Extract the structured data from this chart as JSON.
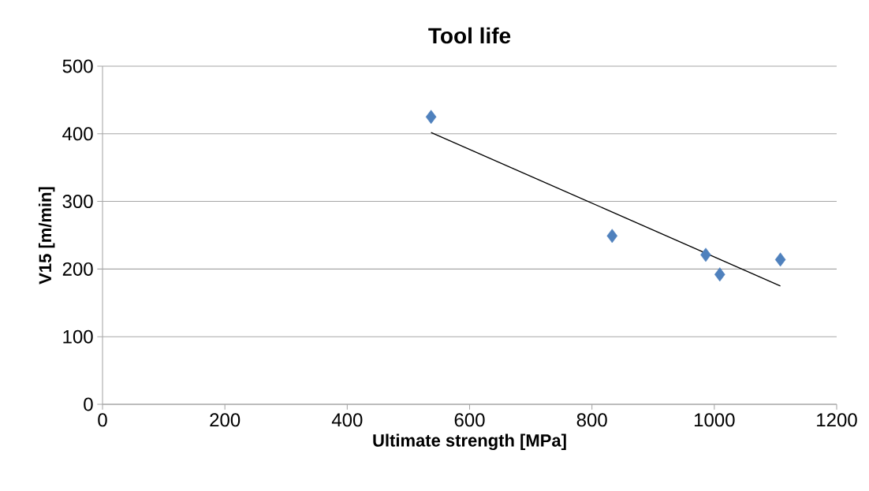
{
  "chart_data": {
    "type": "scatter",
    "title": "Tool life",
    "xlabel": "Ultimate strength [MPa]",
    "ylabel": "V15 [m/min]",
    "xlim": [
      0,
      1200
    ],
    "ylim": [
      0,
      500
    ],
    "xticks": [
      0,
      200,
      400,
      600,
      800,
      1000,
      1200
    ],
    "yticks": [
      0,
      100,
      200,
      300,
      400,
      500
    ],
    "grid": "y",
    "series": [
      {
        "color": "#4f81bd",
        "marker": "diamond",
        "x": [
          537,
          833,
          986,
          1009,
          1108
        ],
        "values": [
          425,
          249,
          221,
          192,
          214
        ]
      },
      {
        "type": "line",
        "color": "#000000",
        "marker": "none",
        "line_style": "solid",
        "x": [
          537,
          1108
        ],
        "values": [
          402,
          175
        ]
      }
    ]
  }
}
